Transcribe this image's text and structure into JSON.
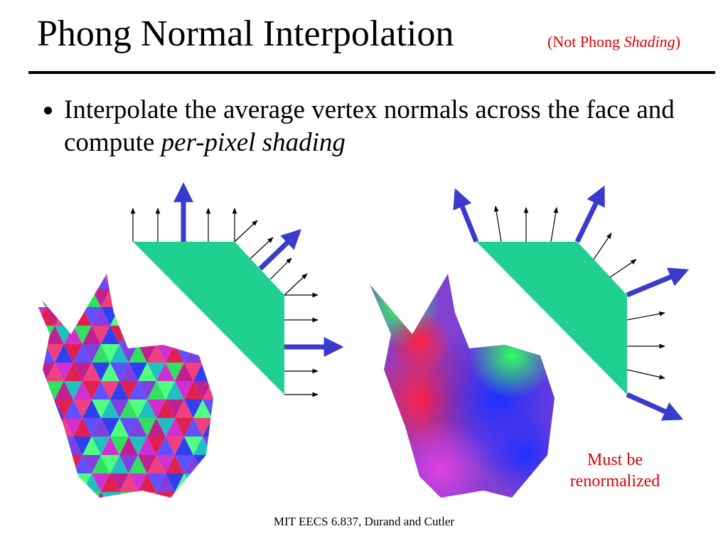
{
  "header": {
    "title": "Phong Normal Interpolation",
    "subtitle": {
      "prefix": "(Not Phong ",
      "emphasis": "Shading",
      "suffix": ")"
    }
  },
  "bullets": [
    {
      "text": "Interpolate the average vertex normals across the face and compute ",
      "emphasis": "per-pixel shading"
    }
  ],
  "annotation": [
    "Must be",
    "renormalized"
  ],
  "footer": "MIT EECS 6.837, Durand and Cutler"
}
